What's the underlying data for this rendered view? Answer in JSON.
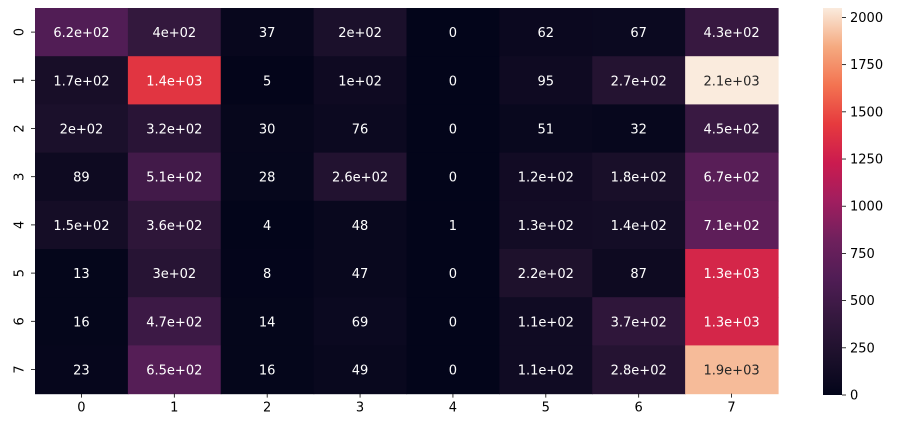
{
  "chart_data": {
    "type": "heatmap",
    "x_categories": [
      "0",
      "1",
      "2",
      "3",
      "4",
      "5",
      "6",
      "7"
    ],
    "y_categories": [
      "0",
      "1",
      "2",
      "3",
      "4",
      "5",
      "6",
      "7"
    ],
    "values": [
      [
        620,
        400,
        37,
        200,
        0,
        62,
        67,
        430
      ],
      [
        170,
        1400,
        5,
        100,
        0,
        95,
        270,
        2100
      ],
      [
        200,
        320,
        30,
        76,
        0,
        51,
        32,
        450
      ],
      [
        89,
        510,
        28,
        260,
        0,
        120,
        180,
        670
      ],
      [
        150,
        360,
        4,
        48,
        1,
        130,
        140,
        710
      ],
      [
        13,
        300,
        8,
        47,
        0,
        220,
        87,
        1300
      ],
      [
        16,
        470,
        14,
        69,
        0,
        110,
        370,
        1300
      ],
      [
        23,
        650,
        16,
        49,
        0,
        110,
        280,
        1900
      ]
    ],
    "labels": [
      [
        "6.2e+02",
        "4e+02",
        "37",
        "2e+02",
        "0",
        "62",
        "67",
        "4.3e+02"
      ],
      [
        "1.7e+02",
        "1.4e+03",
        "5",
        "1e+02",
        "0",
        "95",
        "2.7e+02",
        "2.1e+03"
      ],
      [
        "2e+02",
        "3.2e+02",
        "30",
        "76",
        "0",
        "51",
        "32",
        "4.5e+02"
      ],
      [
        "89",
        "5.1e+02",
        "28",
        "2.6e+02",
        "0",
        "1.2e+02",
        "1.8e+02",
        "6.7e+02"
      ],
      [
        "1.5e+02",
        "3.6e+02",
        "4",
        "48",
        "1",
        "1.3e+02",
        "1.4e+02",
        "7.1e+02"
      ],
      [
        "13",
        "3e+02",
        "8",
        "47",
        "0",
        "2.2e+02",
        "87",
        "1.3e+03"
      ],
      [
        "16",
        "4.7e+02",
        "14",
        "69",
        "0",
        "1.1e+02",
        "3.7e+02",
        "1.3e+03"
      ],
      [
        "23",
        "6.5e+02",
        "16",
        "49",
        "0",
        "1.1e+02",
        "2.8e+02",
        "1.9e+03"
      ]
    ],
    "colorbar": {
      "range": [
        0,
        2050
      ],
      "ticks": [
        0,
        250,
        500,
        750,
        1000,
        1250,
        1500,
        1750,
        2000
      ],
      "colormap": "rocket"
    },
    "title": "",
    "xlabel": "",
    "ylabel": ""
  }
}
